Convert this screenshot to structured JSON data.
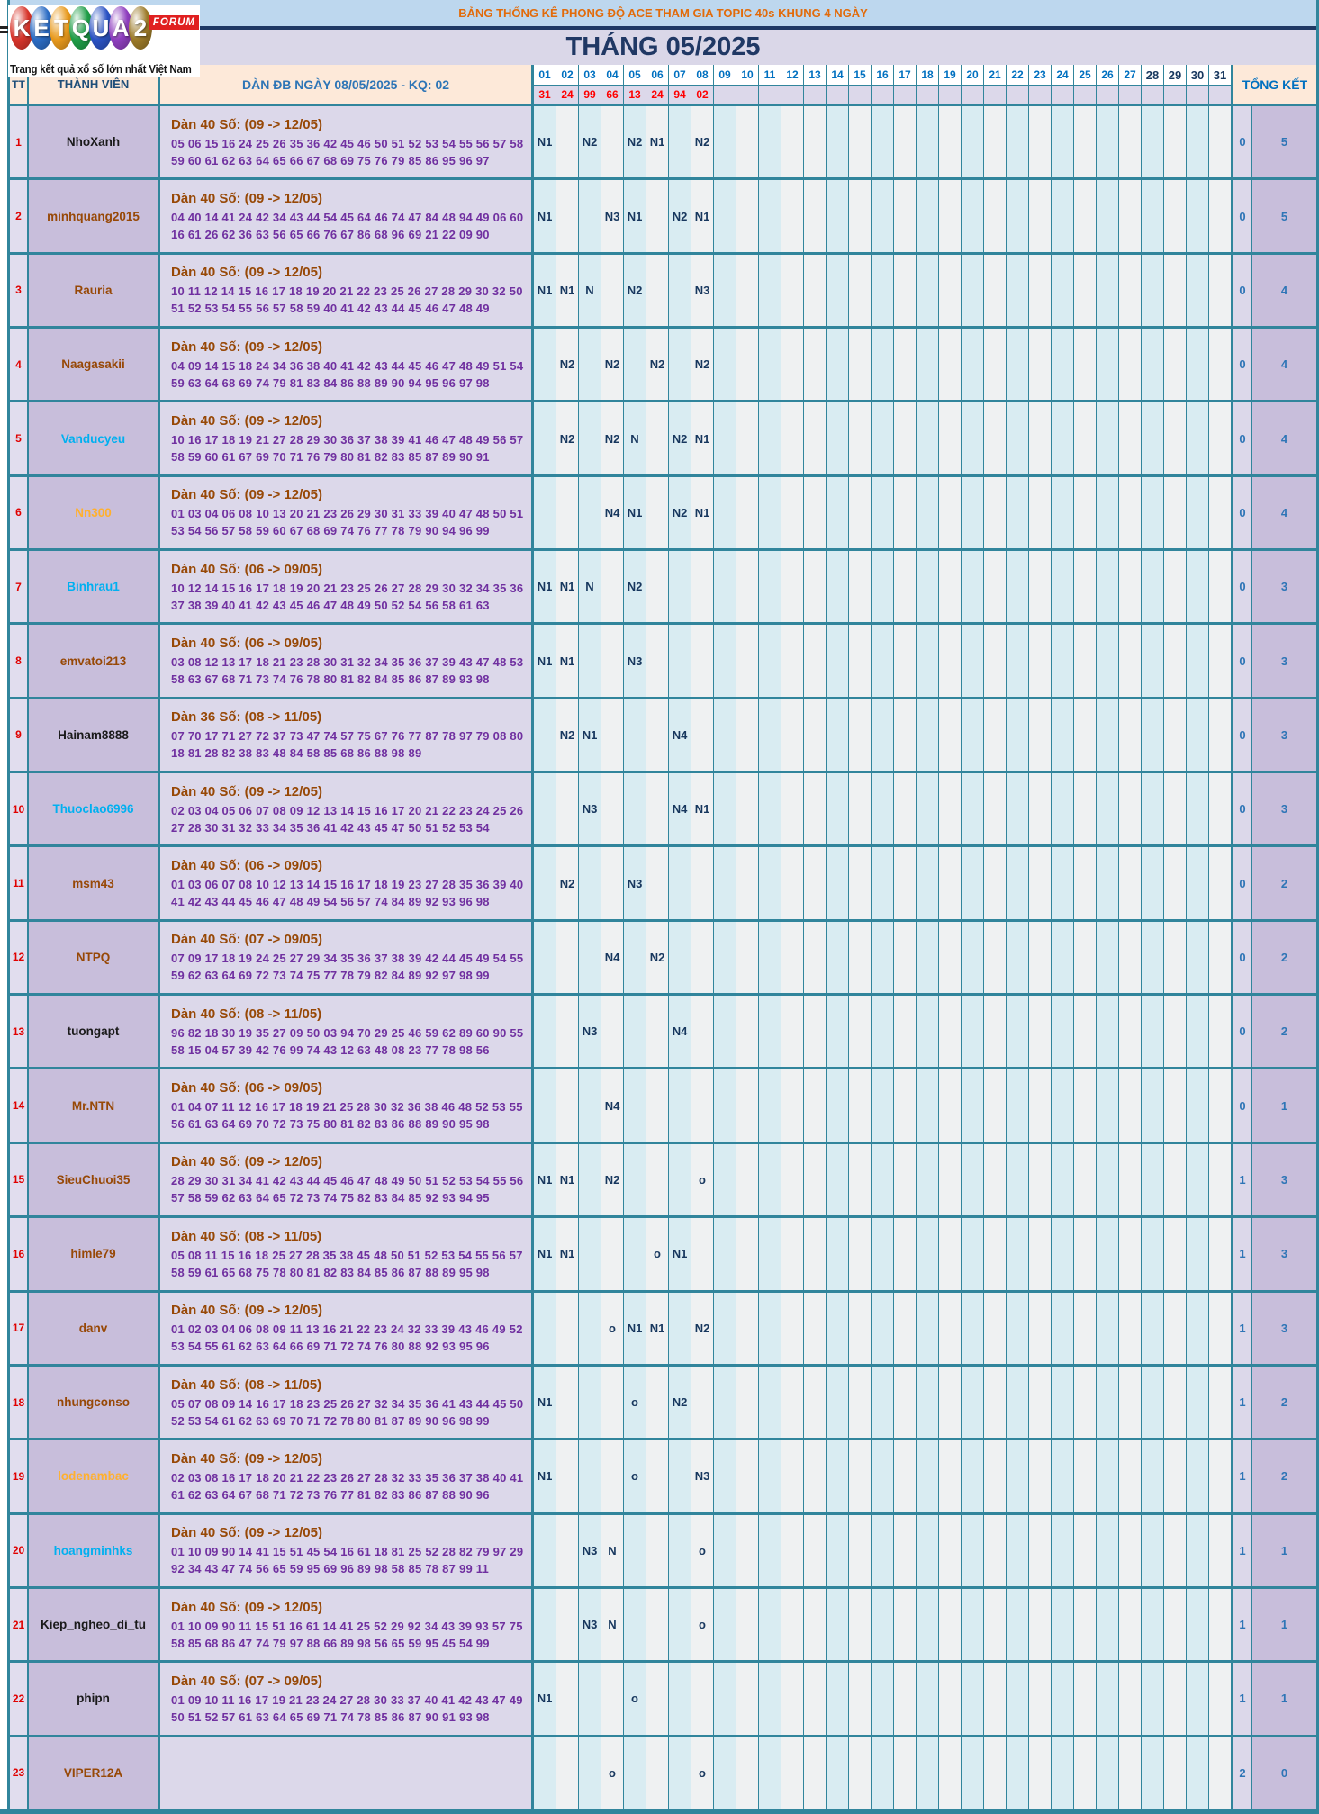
{
  "logo": {
    "letters": [
      {
        "ch": "K",
        "color": "#D7342A"
      },
      {
        "ch": "E",
        "color": "#2B6CC4"
      },
      {
        "ch": "T",
        "color": "#E8991C"
      },
      {
        "ch": "Q",
        "color": "#1F9E48"
      },
      {
        "ch": "U",
        "color": "#2B53C4"
      },
      {
        "ch": "A",
        "color": "#8F3FBF"
      },
      {
        "ch": "2",
        "color": "#9C7A28"
      }
    ],
    "forum": "FORUM",
    "tagline": "Trang kết quả xổ số lớn nhất Việt Nam"
  },
  "title_bar": "BẢNG THỐNG KÊ PHONG ĐỘ ACE THAM GIA TOPIC 40s KHUNG 4 NGÀY",
  "month_title": "THÁNG 05/2025",
  "header": {
    "tt": "TT",
    "member": "THÀNH VIÊN",
    "dan": "DÀN ĐB NGÀY 08/05/2025 - KQ: 02",
    "total": "TỔNG KẾT",
    "days": [
      "01",
      "02",
      "03",
      "04",
      "05",
      "06",
      "07",
      "08",
      "09",
      "10",
      "11",
      "12",
      "13",
      "14",
      "15",
      "16",
      "17",
      "18",
      "19",
      "20",
      "21",
      "22",
      "23",
      "24",
      "25",
      "26",
      "27",
      "28",
      "29",
      "30",
      "31"
    ],
    "day_results": {
      "01": "31",
      "02": "24",
      "03": "99",
      "04": "66",
      "05": "13",
      "06": "24",
      "07": "94",
      "08": "02"
    }
  },
  "colors": {
    "border_teal": "#31859C",
    "title_band": "#BDD7EE",
    "title_text": "#E26B0A",
    "month_band": "#DAD7E8",
    "header_peach": "#FDE9D9",
    "day_cyan": "#D9ECF2",
    "day_white": "#EFF1F2",
    "result_red": "#FF0000",
    "mark_navy": "#17375E",
    "dan_label_brown": "#974806",
    "dan_number_purple": "#7030A0"
  },
  "rows": [
    {
      "tt": "1",
      "name": "NhoXanh",
      "name_color": "#1A1A1A",
      "dan_label": "Dàn 40 Số: (09 -> 12/05)",
      "line1": "05 06 15 16 24 25 26 35 36 42 45 46 50 51 52 53 54 55 56 57 58",
      "line2": "59 60 61 62 63 64 65 66 67 68 69 75 76 79 85 86 95 96 97",
      "marks": {
        "01": "N1",
        "03": "N2",
        "05": "N2",
        "06": "N1",
        "08": "N2"
      },
      "tk1": "0",
      "tk2": "5"
    },
    {
      "tt": "2",
      "name": "minhquang2015",
      "name_color": "#974806",
      "dan_label": "Dàn 40 Số: (09 -> 12/05)",
      "line1": "04 40 14 41 24 42 34 43 44 54 45 64 46 74 47 84 48 94 49 06 60",
      "line2": "16 61 26 62 36 63 56 65 66 76 67 86 68 96 69 21 22 09 90",
      "marks": {
        "01": "N1",
        "04": "N3",
        "05": "N1",
        "07": "N2",
        "08": "N1"
      },
      "tk1": "0",
      "tk2": "5"
    },
    {
      "tt": "3",
      "name": "Rauria",
      "name_color": "#974806",
      "dan_label": "Dàn 40 Số: (09 -> 12/05)",
      "line1": "10 11 12 14 15 16 17 18 19 20 21 22 23 25 26 27 28 29 30 32 50",
      "line2": "51 52 53 54 55 56 57 58 59 40 41 42 43 44 45 46 47 48 49",
      "marks": {
        "01": "N1",
        "02": "N1",
        "03": "N",
        "05": "N2",
        "08": "N3"
      },
      "tk1": "0",
      "tk2": "4"
    },
    {
      "tt": "4",
      "name": "Naagasakii",
      "name_color": "#974806",
      "dan_label": "Dàn 40 Số: (09 -> 12/05)",
      "line1": "04 09 14 15 18 24 34 36 38 40 41 42 43 44 45 46 47 48 49 51 54",
      "line2": "59 63 64 68 69 74 79 81 83 84 86 88 89 90 94 95 96 97 98",
      "marks": {
        "02": "N2",
        "04": "N2",
        "06": "N2",
        "08": "N2"
      },
      "tk1": "0",
      "tk2": "4"
    },
    {
      "tt": "5",
      "name": "Vanducyeu",
      "name_color": "#00B0F0",
      "dan_label": "Dàn 40 Số: (09 -> 12/05)",
      "line1": "10 16 17 18 19 21 27 28 29 30 36 37 38 39 41 46 47 48 49 56 57",
      "line2": "58 59 60 61 67 69 70 71 76 79 80 81 82 83 85 87 89 90 91",
      "marks": {
        "02": "N2",
        "04": "N2",
        "05": "N",
        "07": "N2",
        "08": "N1"
      },
      "tk1": "0",
      "tk2": "4"
    },
    {
      "tt": "6",
      "name": "Nn300",
      "name_color": "#FFB02E",
      "dan_label": "Dàn 40 Số: (09 -> 12/05)",
      "line1": "01 03 04 06 08 10 13 20 21 23 26 29 30 31 33 39 40 47 48 50 51",
      "line2": "53 54 56 57 58 59 60 67 68 69 74 76 77 78 79 90 94 96 99",
      "marks": {
        "04": "N4",
        "05": "N1",
        "07": "N2",
        "08": "N1"
      },
      "tk1": "0",
      "tk2": "4"
    },
    {
      "tt": "7",
      "name": "Binhrau1",
      "name_color": "#00B0F0",
      "dan_label": "Dàn 40 Số: (06 -> 09/05)",
      "line1": "10 12 14 15 16 17 18 19 20 21 23 25 26 27 28 29 30 32 34 35 36",
      "line2": "37 38 39 40 41 42 43 45 46 47 48 49 50 52 54 56 58 61 63",
      "marks": {
        "01": "N1",
        "02": "N1",
        "03": "N",
        "05": "N2"
      },
      "tk1": "0",
      "tk2": "3"
    },
    {
      "tt": "8",
      "name": "emvatoi213",
      "name_color": "#974806",
      "dan_label": "Dàn 40 Số: (06 -> 09/05)",
      "line1": "03 08 12 13 17 18 21 23 28 30 31 32 34 35 36 37 39 43 47 48 53",
      "line2": "58 63 67 68 71 73 74 76 78 80 81 82 84 85 86 87 89 93 98",
      "marks": {
        "01": "N1",
        "02": "N1",
        "05": "N3"
      },
      "tk1": "0",
      "tk2": "3"
    },
    {
      "tt": "9",
      "name": "Hainam8888",
      "name_color": "#1A1A1A",
      "dan_label": "Dàn 36 Số: (08 -> 11/05)",
      "line1": "07 70 17 71 27 72 37 73 47 74 57 75 67 76 77 87 78 97 79 08 80",
      "line2": "18 81 28 82 38 83 48 84 58 85 68 86 88 98 89",
      "marks": {
        "02": "N2",
        "03": "N1",
        "07": "N4"
      },
      "tk1": "0",
      "tk2": "3"
    },
    {
      "tt": "10",
      "name": "Thuoclao6996",
      "name_color": "#00B0F0",
      "dan_label": "Dàn 40 Số: (09 -> 12/05)",
      "line1": "02 03 04 05 06 07 08 09 12 13 14 15 16 17 20 21 22 23 24 25 26",
      "line2": "27 28 30 31 32 33 34 35 36 41 42 43 45 47 50 51 52 53 54",
      "marks": {
        "03": "N3",
        "07": "N4",
        "08": "N1"
      },
      "tk1": "0",
      "tk2": "3"
    },
    {
      "tt": "11",
      "name": "msm43",
      "name_color": "#974806",
      "dan_label": "Dàn 40 Số: (06 -> 09/05)",
      "line1": "01 03 06 07 08 10 12 13 14 15 16 17 18 19 23 27 28 35 36 39 40",
      "line2": "41 42 43 44 45 46 47 48 49 54 56 57 74 84 89 92 93 96 98",
      "marks": {
        "02": "N2",
        "05": "N3"
      },
      "tk1": "0",
      "tk2": "2"
    },
    {
      "tt": "12",
      "name": "NTPQ",
      "name_color": "#974806",
      "dan_label": "Dàn 40 Số: (07 -> 09/05)",
      "line1": "07 09 17 18 19 24 25 27 29 34 35 36 37 38 39 42 44 45 49 54 55",
      "line2": "59 62 63 64 69 72 73 74 75 77 78 79 82 84 89 92 97 98 99",
      "marks": {
        "04": "N4",
        "06": "N2"
      },
      "tk1": "0",
      "tk2": "2"
    },
    {
      "tt": "13",
      "name": "tuongapt",
      "name_color": "#1A1A1A",
      "dan_label": "Dàn 40 Số: (08 -> 11/05)",
      "line1": "96 82 18 30 19 35 27 09 50 03 94 70 29 25 46 59 62 89 60 90 55",
      "line2": "58 15 04 57 39 42 76 99 74 43 12 63 48 08 23 77 78 98 56",
      "marks": {
        "03": "N3",
        "07": "N4"
      },
      "tk1": "0",
      "tk2": "2"
    },
    {
      "tt": "14",
      "name": "Mr.NTN",
      "name_color": "#974806",
      "dan_label": "Dàn 40 Số: (06 -> 09/05)",
      "line1": "01 04 07 11 12 16 17 18 19 21 25 28 30 32 36 38 46 48 52 53 55",
      "line2": "56 61 63 64 69 70 72 73 75 80 81 82 83 86 88 89 90 95 98",
      "marks": {
        "04": "N4"
      },
      "tk1": "0",
      "tk2": "1"
    },
    {
      "tt": "15",
      "name": "SieuChuoi35",
      "name_color": "#974806",
      "dan_label": "Dàn 40 Số: (09 -> 12/05)",
      "line1": "28 29 30 31 34 41 42 43 44 45 46 47 48 49 50 51 52 53 54 55 56",
      "line2": "57 58 59 62 63 64 65 72 73 74 75 82 83 84 85 92 93 94 95",
      "marks": {
        "01": "N1",
        "02": "N1",
        "04": "N2",
        "08": "o"
      },
      "tk1": "1",
      "tk2": "3"
    },
    {
      "tt": "16",
      "name": "himle79",
      "name_color": "#974806",
      "dan_label": "Dàn 40 Số: (08 -> 11/05)",
      "line1": "05 08 11 15 16 18 25 27 28 35 38 45 48 50 51 52 53 54 55 56 57",
      "line2": "58 59 61 65 68 75 78 80 81 82 83 84 85 86 87 88 89 95 98",
      "marks": {
        "01": "N1",
        "02": "N1",
        "06": "o",
        "07": "N1"
      },
      "tk1": "1",
      "tk2": "3"
    },
    {
      "tt": "17",
      "name": "danv",
      "name_color": "#974806",
      "dan_label": "Dàn 40 Số: (09 -> 12/05)",
      "line1": "01 02 03 04 06 08 09 11 13 16 21 22 23 24 32 33 39 43 46 49 52",
      "line2": "53 54 55 61 62 63 64 66 69 71 72 74 76 80 88 92 93 95 96",
      "marks": {
        "04": "o",
        "05": "N1",
        "06": "N1",
        "08": "N2"
      },
      "tk1": "1",
      "tk2": "3"
    },
    {
      "tt": "18",
      "name": "nhungconso",
      "name_color": "#974806",
      "dan_label": "Dàn 40 Số: (08 -> 11/05)",
      "line1": "05 07 08 09 14 16 17 18 23 25 26 27 32 34 35 36 41 43 44 45 50",
      "line2": "52 53 54 61 62 63 69 70 71 72 78 80 81 87 89 90 96 98 99",
      "marks": {
        "01": "N1",
        "05": "o",
        "07": "N2"
      },
      "tk1": "1",
      "tk2": "2"
    },
    {
      "tt": "19",
      "name": "lodenambac",
      "name_color": "#FFB02E",
      "dan_label": "Dàn 40 Số: (09 -> 12/05)",
      "line1": "02 03 08 16 17 18 20 21 22 23 26 27 28 32 33 35 36 37 38 40 41",
      "line2": "61 62 63 64 67 68 71 72 73 76 77 81 82 83 86 87 88 90 96",
      "marks": {
        "01": "N1",
        "05": "o",
        "08": "N3"
      },
      "tk1": "1",
      "tk2": "2"
    },
    {
      "tt": "20",
      "name": "hoangminhks",
      "name_color": "#00B0F0",
      "dan_label": "Dàn 40 Số: (09 -> 12/05)",
      "line1": "01 10 09 90 14 41 15 51 45 54 16 61 18 81 25 52 28 82 79 97 29",
      "line2": "92 34 43 47 74 56 65 59 95 69 96 89 98 58 85 78 87 99 11",
      "marks": {
        "03": "N3",
        "04": "N",
        "08": "o"
      },
      "tk1": "1",
      "tk2": "1"
    },
    {
      "tt": "21",
      "name": "Kiep_ngheo_di_tu",
      "name_color": "#1A1A1A",
      "dan_label": "Dàn 40 Số: (09 -> 12/05)",
      "line1": "01 10 09 90 11 15 51 16 61 14 41 25 52 29 92 34 43 39 93 57 75",
      "line2": "58 85 68 86 47 74 79 97 88 66 89 98 56 65 59 95 45 54 99",
      "marks": {
        "03": "N3",
        "04": "N",
        "08": "o"
      },
      "tk1": "1",
      "tk2": "1"
    },
    {
      "tt": "22",
      "name": "phipn",
      "name_color": "#1A1A1A",
      "dan_label": "Dàn 40 Số: (07 -> 09/05)",
      "line1": "01 09 10 11 16 17 19 21 23 24 27 28 30 33 37 40 41 42 43 47 49",
      "line2": "50 51 52 57 61 63 64 65 69 71 74 78 85 86 87 90 91 93 98",
      "marks": {
        "01": "N1",
        "05": "o"
      },
      "tk1": "1",
      "tk2": "1"
    },
    {
      "tt": "23",
      "name": "VIPER12A",
      "name_color": "#974806",
      "dan_label": "",
      "line1": "",
      "line2": "",
      "marks": {
        "04": "o",
        "08": "o"
      },
      "tk1": "2",
      "tk2": "0"
    }
  ]
}
